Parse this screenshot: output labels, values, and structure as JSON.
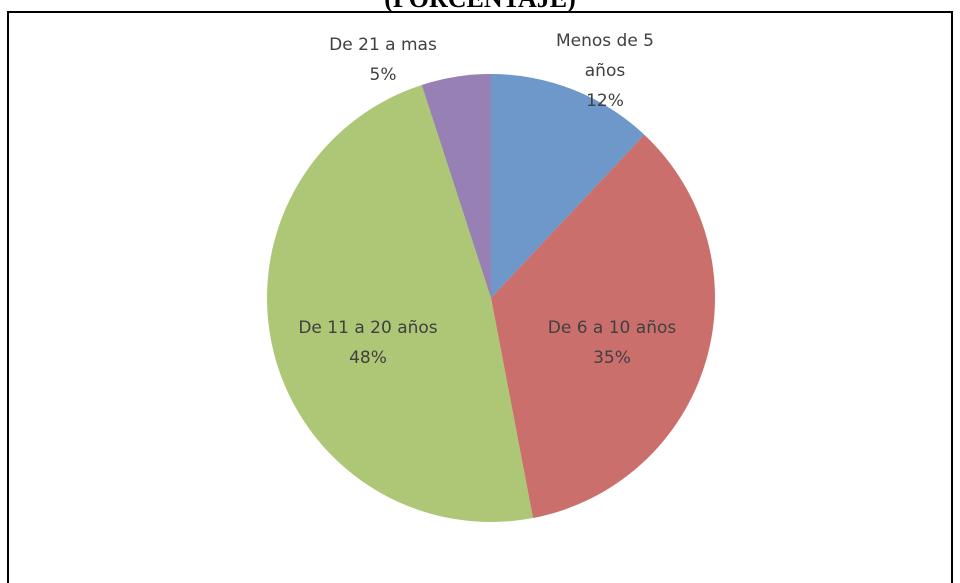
{
  "chart_data": {
    "type": "pie",
    "title": "(PORCENTAJE)",
    "categories": [
      "Menos de 5 años",
      "De 6 a 10 años",
      "De 11 a 20 años",
      "De 21 a mas"
    ],
    "values": [
      12,
      35,
      48,
      5
    ],
    "value_labels": [
      "12%",
      "35%",
      "48%",
      "5%"
    ],
    "colors": [
      "#4a7ebb",
      "#be4b48",
      "#98b954",
      "#7d60a0"
    ]
  }
}
